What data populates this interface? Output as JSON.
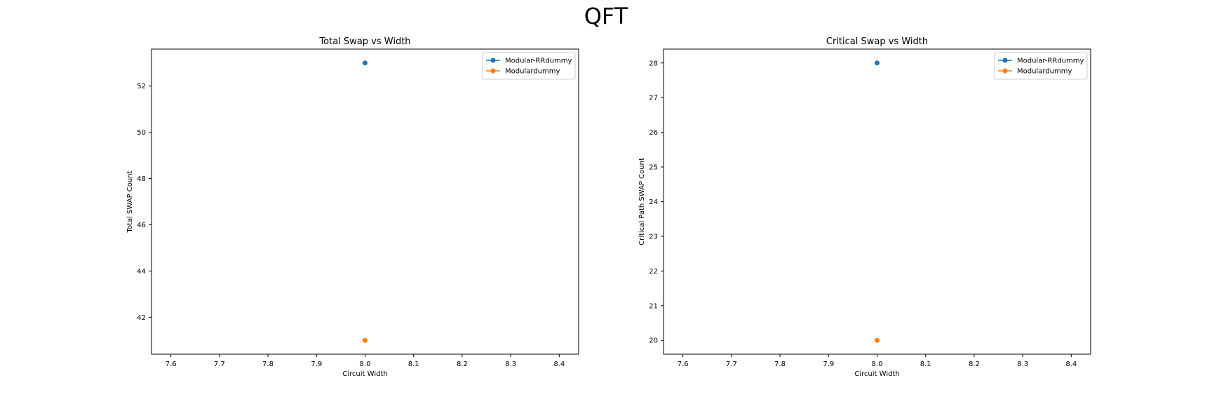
{
  "figure": {
    "suptitle": "QFT"
  },
  "colors": {
    "series_0": "#1f77b4",
    "series_1": "#ff7f0e"
  },
  "chart_data": [
    {
      "type": "line",
      "title": "Total Swap vs Width",
      "xlabel": "Circuit Width",
      "ylabel": "Total SWAP Count",
      "xlim": [
        7.56,
        8.44
      ],
      "ylim": [
        40.4,
        53.6
      ],
      "xticks": [
        7.6,
        7.7,
        7.8,
        7.9,
        8.0,
        8.1,
        8.2,
        8.3,
        8.4
      ],
      "xtick_labels": [
        "7.6",
        "7.7",
        "7.8",
        "7.9",
        "8.0",
        "8.1",
        "8.2",
        "8.3",
        "8.4"
      ],
      "yticks": [
        42,
        44,
        46,
        48,
        50,
        52
      ],
      "ytick_labels": [
        "42",
        "44",
        "46",
        "48",
        "50",
        "52"
      ],
      "grid": false,
      "legend": "upper right",
      "series": [
        {
          "name": "Modular-RRdummy",
          "color": "#1f77b4",
          "x": [
            8.0
          ],
          "y": [
            53
          ]
        },
        {
          "name": "Modulardummy",
          "color": "#ff7f0e",
          "x": [
            8.0
          ],
          "y": [
            41
          ]
        }
      ]
    },
    {
      "type": "line",
      "title": "Critical Swap vs Width",
      "xlabel": "Circuit Width",
      "ylabel": "Critical Path SWAP Count",
      "xlim": [
        7.56,
        8.44
      ],
      "ylim": [
        19.6,
        28.4
      ],
      "xticks": [
        7.6,
        7.7,
        7.8,
        7.9,
        8.0,
        8.1,
        8.2,
        8.3,
        8.4
      ],
      "xtick_labels": [
        "7.6",
        "7.7",
        "7.8",
        "7.9",
        "8.0",
        "8.1",
        "8.2",
        "8.3",
        "8.4"
      ],
      "yticks": [
        20,
        21,
        22,
        23,
        24,
        25,
        26,
        27,
        28
      ],
      "ytick_labels": [
        "20",
        "21",
        "22",
        "23",
        "24",
        "25",
        "26",
        "27",
        "28"
      ],
      "grid": false,
      "legend": "upper right",
      "series": [
        {
          "name": "Modular-RRdummy",
          "color": "#1f77b4",
          "x": [
            8.0
          ],
          "y": [
            28
          ]
        },
        {
          "name": "Modulardummy",
          "color": "#ff7f0e",
          "x": [
            8.0
          ],
          "y": [
            20
          ]
        }
      ]
    }
  ]
}
